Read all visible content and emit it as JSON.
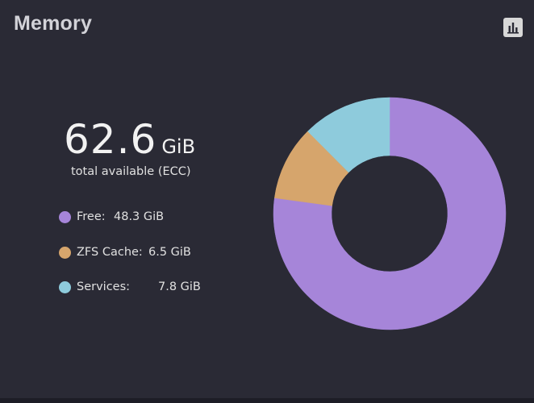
{
  "header": {
    "title": "Memory",
    "chart_toggle_icon": "bar-chart-icon"
  },
  "summary": {
    "total_value": "62.6",
    "total_unit": "GiB",
    "caption": "total available (ECC)"
  },
  "legend": [
    {
      "label": "Free:",
      "value": "48.3 GiB",
      "color": "#a685d9"
    },
    {
      "label": "ZFS Cache:",
      "value": "6.5 GiB",
      "color": "#d6a56c"
    },
    {
      "label": "Services:",
      "value": "7.8 GiB",
      "color": "#8ecbdc"
    }
  ],
  "colors": {
    "background": "#2a2a35",
    "free": "#a685d9",
    "zfs_cache": "#d6a56c",
    "services": "#8ecbdc"
  },
  "chart_data": {
    "type": "pie",
    "donut": true,
    "categories": [
      "Free",
      "ZFS Cache",
      "Services"
    ],
    "values": [
      48.3,
      6.5,
      7.8
    ],
    "unit": "GiB",
    "colors": [
      "#a685d9",
      "#d6a56c",
      "#8ecbdc"
    ],
    "start_angle_deg": 0,
    "direction": "clockwise"
  }
}
